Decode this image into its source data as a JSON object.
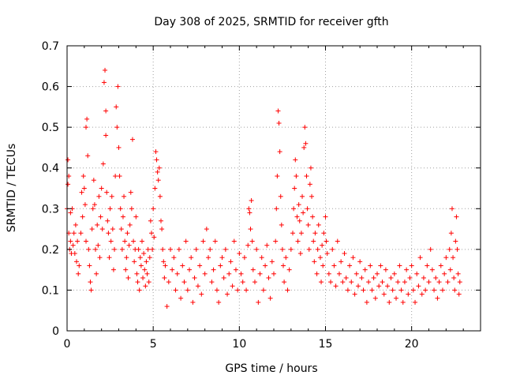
{
  "chart_data": {
    "type": "scatter",
    "title": "Day 308 of 2025, SRMTID for receiver gfth",
    "xlabel": "GPS time / hours",
    "ylabel": "SRMTID / TECUs",
    "xlim": [
      0,
      24
    ],
    "ylim": [
      0,
      0.7
    ],
    "x_ticks": [
      0,
      5,
      10,
      15,
      20
    ],
    "x_tick_labels": [
      "0",
      "5",
      "10",
      "15",
      "20"
    ],
    "y_ticks": [
      0,
      0.1,
      0.2,
      0.3,
      0.4,
      0.5,
      0.6,
      0.7
    ],
    "y_tick_labels": [
      "0",
      "0.1",
      "0.2",
      "0.3",
      "0.4",
      "0.5",
      "0.6",
      "0.7"
    ],
    "grid": true,
    "marker": "+",
    "color": "#ff0000",
    "series": [
      {
        "name": "SRMTID",
        "points": [
          [
            0.0,
            0.3
          ],
          [
            0.05,
            0.42
          ],
          [
            0.05,
            0.36
          ],
          [
            0.1,
            0.38
          ],
          [
            0.1,
            0.24
          ],
          [
            0.15,
            0.2
          ],
          [
            0.2,
            0.29
          ],
          [
            0.2,
            0.22
          ],
          [
            0.25,
            0.19
          ],
          [
            0.3,
            0.3
          ],
          [
            0.35,
            0.21
          ],
          [
            0.4,
            0.24
          ],
          [
            0.45,
            0.19
          ],
          [
            0.5,
            0.26
          ],
          [
            0.55,
            0.17
          ],
          [
            0.6,
            0.22
          ],
          [
            0.65,
            0.14
          ],
          [
            0.7,
            0.16
          ],
          [
            0.8,
            0.24
          ],
          [
            0.85,
            0.34
          ],
          [
            0.9,
            0.28
          ],
          [
            0.95,
            0.38
          ],
          [
            1.0,
            0.35
          ],
          [
            1.05,
            0.31
          ],
          [
            1.1,
            0.22
          ],
          [
            1.1,
            0.5
          ],
          [
            1.15,
            0.52
          ],
          [
            1.2,
            0.43
          ],
          [
            1.25,
            0.2
          ],
          [
            1.3,
            0.16
          ],
          [
            1.35,
            0.12
          ],
          [
            1.4,
            0.1
          ],
          [
            1.45,
            0.25
          ],
          [
            1.5,
            0.3
          ],
          [
            1.55,
            0.37
          ],
          [
            1.6,
            0.31
          ],
          [
            1.65,
            0.2
          ],
          [
            1.7,
            0.14
          ],
          [
            1.75,
            0.26
          ],
          [
            1.8,
            0.21
          ],
          [
            1.85,
            0.33
          ],
          [
            1.9,
            0.18
          ],
          [
            1.95,
            0.28
          ],
          [
            2.0,
            0.35
          ],
          [
            2.05,
            0.25
          ],
          [
            2.1,
            0.41
          ],
          [
            2.15,
            0.61
          ],
          [
            2.2,
            0.64
          ],
          [
            2.25,
            0.54
          ],
          [
            2.25,
            0.48
          ],
          [
            2.3,
            0.34
          ],
          [
            2.35,
            0.27
          ],
          [
            2.4,
            0.24
          ],
          [
            2.45,
            0.18
          ],
          [
            2.5,
            0.3
          ],
          [
            2.55,
            0.22
          ],
          [
            2.6,
            0.33
          ],
          [
            2.65,
            0.25
          ],
          [
            2.7,
            0.15
          ],
          [
            2.75,
            0.2
          ],
          [
            2.8,
            0.38
          ],
          [
            2.85,
            0.55
          ],
          [
            2.9,
            0.5
          ],
          [
            2.95,
            0.6
          ],
          [
            3.0,
            0.45
          ],
          [
            3.05,
            0.38
          ],
          [
            3.1,
            0.3
          ],
          [
            3.15,
            0.25
          ],
          [
            3.2,
            0.2
          ],
          [
            3.25,
            0.28
          ],
          [
            3.3,
            0.33
          ],
          [
            3.35,
            0.22
          ],
          [
            3.4,
            0.15
          ],
          [
            3.45,
            0.18
          ],
          [
            3.5,
            0.24
          ],
          [
            3.55,
            0.13
          ],
          [
            3.6,
            0.21
          ],
          [
            3.65,
            0.26
          ],
          [
            3.7,
            0.34
          ],
          [
            3.75,
            0.3
          ],
          [
            3.8,
            0.47
          ],
          [
            3.85,
            0.22
          ],
          [
            3.9,
            0.17
          ],
          [
            3.95,
            0.2
          ],
          [
            4.0,
            0.28
          ],
          [
            4.05,
            0.14
          ],
          [
            4.1,
            0.12
          ],
          [
            4.15,
            0.2
          ],
          [
            4.2,
            0.1
          ],
          [
            4.25,
            0.18
          ],
          [
            4.3,
            0.16
          ],
          [
            4.35,
            0.22
          ],
          [
            4.4,
            0.13
          ],
          [
            4.45,
            0.19
          ],
          [
            4.5,
            0.15
          ],
          [
            4.55,
            0.11
          ],
          [
            4.6,
            0.17
          ],
          [
            4.65,
            0.14
          ],
          [
            4.7,
            0.2
          ],
          [
            4.75,
            0.12
          ],
          [
            4.8,
            0.18
          ],
          [
            4.85,
            0.27
          ],
          [
            4.9,
            0.24
          ],
          [
            4.95,
            0.2
          ],
          [
            5.0,
            0.3
          ],
          [
            5.05,
            0.23
          ],
          [
            5.1,
            0.35
          ],
          [
            5.15,
            0.44
          ],
          [
            5.2,
            0.42
          ],
          [
            5.25,
            0.39
          ],
          [
            5.3,
            0.37
          ],
          [
            5.35,
            0.4
          ],
          [
            5.4,
            0.33
          ],
          [
            5.45,
            0.27
          ],
          [
            5.5,
            0.25
          ],
          [
            5.55,
            0.2
          ],
          [
            5.6,
            0.17
          ],
          [
            5.65,
            0.13
          ],
          [
            5.7,
            0.16
          ],
          [
            5.8,
            0.06
          ],
          [
            5.9,
            0.12
          ],
          [
            6.0,
            0.2
          ],
          [
            6.1,
            0.15
          ],
          [
            6.2,
            0.18
          ],
          [
            6.3,
            0.1
          ],
          [
            6.4,
            0.14
          ],
          [
            6.5,
            0.2
          ],
          [
            6.6,
            0.08
          ],
          [
            6.7,
            0.16
          ],
          [
            6.8,
            0.12
          ],
          [
            6.9,
            0.22
          ],
          [
            7.0,
            0.1
          ],
          [
            7.1,
            0.15
          ],
          [
            7.2,
            0.18
          ],
          [
            7.3,
            0.07
          ],
          [
            7.4,
            0.13
          ],
          [
            7.5,
            0.2
          ],
          [
            7.6,
            0.11
          ],
          [
            7.7,
            0.16
          ],
          [
            7.8,
            0.09
          ],
          [
            7.9,
            0.22
          ],
          [
            8.0,
            0.14
          ],
          [
            8.1,
            0.25
          ],
          [
            8.2,
            0.18
          ],
          [
            8.3,
            0.2
          ],
          [
            8.4,
            0.12
          ],
          [
            8.5,
            0.15
          ],
          [
            8.6,
            0.22
          ],
          [
            8.7,
            0.1
          ],
          [
            8.8,
            0.07
          ],
          [
            8.9,
            0.16
          ],
          [
            9.0,
            0.18
          ],
          [
            9.1,
            0.13
          ],
          [
            9.2,
            0.2
          ],
          [
            9.3,
            0.09
          ],
          [
            9.4,
            0.14
          ],
          [
            9.5,
            0.17
          ],
          [
            9.6,
            0.11
          ],
          [
            9.7,
            0.22
          ],
          [
            9.8,
            0.15
          ],
          [
            9.9,
            0.1
          ],
          [
            10.0,
            0.19
          ],
          [
            10.1,
            0.14
          ],
          [
            10.2,
            0.12
          ],
          [
            10.3,
            0.18
          ],
          [
            10.4,
            0.1
          ],
          [
            10.5,
            0.21
          ],
          [
            10.55,
            0.3
          ],
          [
            10.6,
            0.29
          ],
          [
            10.65,
            0.25
          ],
          [
            10.7,
            0.32
          ],
          [
            10.75,
            0.22
          ],
          [
            10.8,
            0.15
          ],
          [
            10.9,
            0.12
          ],
          [
            11.0,
            0.2
          ],
          [
            11.1,
            0.07
          ],
          [
            11.2,
            0.14
          ],
          [
            11.3,
            0.18
          ],
          [
            11.4,
            0.1
          ],
          [
            11.5,
            0.16
          ],
          [
            11.6,
            0.21
          ],
          [
            11.7,
            0.13
          ],
          [
            11.8,
            0.08
          ],
          [
            11.9,
            0.17
          ],
          [
            12.0,
            0.14
          ],
          [
            12.1,
            0.22
          ],
          [
            12.15,
            0.3
          ],
          [
            12.2,
            0.38
          ],
          [
            12.25,
            0.54
          ],
          [
            12.3,
            0.51
          ],
          [
            12.35,
            0.44
          ],
          [
            12.4,
            0.33
          ],
          [
            12.45,
            0.26
          ],
          [
            12.5,
            0.2
          ],
          [
            12.55,
            0.16
          ],
          [
            12.6,
            0.12
          ],
          [
            12.7,
            0.18
          ],
          [
            12.8,
            0.1
          ],
          [
            12.9,
            0.15
          ],
          [
            13.0,
            0.2
          ],
          [
            13.1,
            0.24
          ],
          [
            13.15,
            0.3
          ],
          [
            13.2,
            0.35
          ],
          [
            13.25,
            0.42
          ],
          [
            13.3,
            0.38
          ],
          [
            13.35,
            0.28
          ],
          [
            13.4,
            0.22
          ],
          [
            13.45,
            0.31
          ],
          [
            13.5,
            0.27
          ],
          [
            13.55,
            0.19
          ],
          [
            13.6,
            0.24
          ],
          [
            13.65,
            0.33
          ],
          [
            13.7,
            0.29
          ],
          [
            13.75,
            0.45
          ],
          [
            13.8,
            0.5
          ],
          [
            13.85,
            0.46
          ],
          [
            13.9,
            0.38
          ],
          [
            13.95,
            0.3
          ],
          [
            14.0,
            0.26
          ],
          [
            14.05,
            0.2
          ],
          [
            14.1,
            0.36
          ],
          [
            14.15,
            0.4
          ],
          [
            14.2,
            0.33
          ],
          [
            14.25,
            0.28
          ],
          [
            14.3,
            0.22
          ],
          [
            14.35,
            0.17
          ],
          [
            14.4,
            0.24
          ],
          [
            14.5,
            0.14
          ],
          [
            14.55,
            0.2
          ],
          [
            14.6,
            0.26
          ],
          [
            14.7,
            0.18
          ],
          [
            14.75,
            0.12
          ],
          [
            14.8,
            0.21
          ],
          [
            14.85,
            0.16
          ],
          [
            14.9,
            0.24
          ],
          [
            15.0,
            0.28
          ],
          [
            15.05,
            0.22
          ],
          [
            15.1,
            0.19
          ],
          [
            15.2,
            0.14
          ],
          [
            15.3,
            0.12
          ],
          [
            15.4,
            0.2
          ],
          [
            15.5,
            0.16
          ],
          [
            15.6,
            0.11
          ],
          [
            15.7,
            0.22
          ],
          [
            15.8,
            0.14
          ],
          [
            15.9,
            0.17
          ],
          [
            16.0,
            0.12
          ],
          [
            16.1,
            0.19
          ],
          [
            16.2,
            0.13
          ],
          [
            16.3,
            0.1
          ],
          [
            16.4,
            0.16
          ],
          [
            16.5,
            0.12
          ],
          [
            16.6,
            0.18
          ],
          [
            16.7,
            0.09
          ],
          [
            16.8,
            0.14
          ],
          [
            16.9,
            0.11
          ],
          [
            17.0,
            0.17
          ],
          [
            17.1,
            0.13
          ],
          [
            17.2,
            0.1
          ],
          [
            17.3,
            0.15
          ],
          [
            17.4,
            0.07
          ],
          [
            17.5,
            0.12
          ],
          [
            17.6,
            0.16
          ],
          [
            17.7,
            0.1
          ],
          [
            17.8,
            0.13
          ],
          [
            17.9,
            0.08
          ],
          [
            18.0,
            0.14
          ],
          [
            18.1,
            0.11
          ],
          [
            18.2,
            0.16
          ],
          [
            18.3,
            0.12
          ],
          [
            18.4,
            0.09
          ],
          [
            18.5,
            0.15
          ],
          [
            18.6,
            0.11
          ],
          [
            18.7,
            0.07
          ],
          [
            18.8,
            0.13
          ],
          [
            18.9,
            0.1
          ],
          [
            19.0,
            0.14
          ],
          [
            19.1,
            0.08
          ],
          [
            19.2,
            0.12
          ],
          [
            19.3,
            0.16
          ],
          [
            19.4,
            0.1
          ],
          [
            19.5,
            0.07
          ],
          [
            19.6,
            0.12
          ],
          [
            19.7,
            0.15
          ],
          [
            19.8,
            0.09
          ],
          [
            19.9,
            0.13
          ],
          [
            20.0,
            0.16
          ],
          [
            20.1,
            0.1
          ],
          [
            20.2,
            0.07
          ],
          [
            20.3,
            0.14
          ],
          [
            20.4,
            0.11
          ],
          [
            20.5,
            0.18
          ],
          [
            20.6,
            0.09
          ],
          [
            20.7,
            0.13
          ],
          [
            20.8,
            0.1
          ],
          [
            20.9,
            0.16
          ],
          [
            21.0,
            0.12
          ],
          [
            21.1,
            0.2
          ],
          [
            21.2,
            0.15
          ],
          [
            21.3,
            0.1
          ],
          [
            21.4,
            0.13
          ],
          [
            21.5,
            0.08
          ],
          [
            21.6,
            0.12
          ],
          [
            21.7,
            0.16
          ],
          [
            21.8,
            0.1
          ],
          [
            21.9,
            0.14
          ],
          [
            22.0,
            0.18
          ],
          [
            22.1,
            0.12
          ],
          [
            22.2,
            0.2
          ],
          [
            22.25,
            0.15
          ],
          [
            22.3,
            0.24
          ],
          [
            22.35,
            0.3
          ],
          [
            22.4,
            0.18
          ],
          [
            22.45,
            0.13
          ],
          [
            22.5,
            0.1
          ],
          [
            22.55,
            0.22
          ],
          [
            22.6,
            0.28
          ],
          [
            22.65,
            0.2
          ],
          [
            22.7,
            0.14
          ],
          [
            22.75,
            0.09
          ],
          [
            22.8,
            0.12
          ]
        ]
      }
    ]
  }
}
